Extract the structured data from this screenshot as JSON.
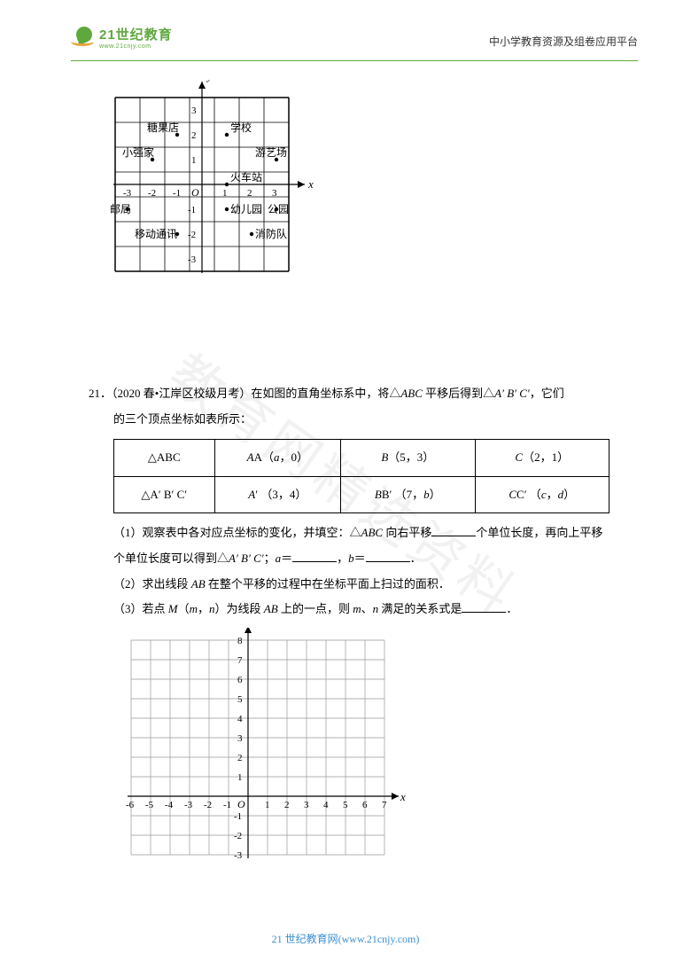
{
  "header": {
    "logo_cn": "21世纪教育",
    "logo_en": "www.21cnjy.com",
    "right_text": "中小学教育资源及组卷应用平台"
  },
  "watermark": "教育网精选资料",
  "grid1": {
    "axis_y": "y",
    "axis_x": "x",
    "origin": "O",
    "xticks": [
      "-3",
      "-2",
      "-1",
      "1",
      "2",
      "3"
    ],
    "yticks_pos": [
      "1",
      "2",
      "3"
    ],
    "yticks_neg": [
      "-1",
      "-2",
      "-3"
    ],
    "labels": {
      "candy": "糖果店",
      "school": "学校",
      "xiaoqiang": "小强家",
      "youyi": "游艺场",
      "train": "火车站",
      "post": "邮局",
      "kinder": "幼儿园",
      "park": "公园",
      "mobile": "移动通讯",
      "fire": "消防队"
    },
    "cell": 28,
    "grid_color": "#000000",
    "line_width": 1
  },
  "q21": {
    "number": "21．",
    "source": "（2020 春•江岸区校级月考）",
    "stem": "在如图的直角坐标系中，将△",
    "abc": "ABC",
    "stem2": " 平移后得到△",
    "aprime": "A′ B′ C′",
    "stem3": "，它们",
    "stem4": "的三个顶点坐标如表所示：",
    "table": {
      "r1c1": "△ABC",
      "r1c2_pre": "A（",
      "r1c2_var": "a",
      "r1c2_post": "，0）",
      "r1c3": "B（5，3）",
      "r1c4": "C（2，1）",
      "r2c1": "△A′ B′ C′",
      "r2c2": "A′ （3，4）",
      "r2c3_pre": "B′ （7，",
      "r2c3_var": "b",
      "r2c3_post": "）",
      "r2c4_pre": "C′ （",
      "r2c4_var1": "c",
      "r2c4_mid": "，",
      "r2c4_var2": "d",
      "r2c4_post": "）"
    },
    "part1_a": "（1）观察表中各对应点坐标的变化，并填空：△",
    "part1_b": " 向右平移",
    "part1_c": "个单位长度，再向上平移",
    "part1_d": "个单位长度可以得到△",
    "part1_e": "；",
    "part1_var_a": "a",
    "eq1": "＝",
    "comma": "，",
    "part1_var_b": "b",
    "period": "．",
    "part2": "（2）求出线段 ",
    "part2_ab": "AB",
    "part2_b": " 在整个平移的过程中在坐标平面上扫过的面积．",
    "part3_a": "（3）若点 ",
    "part3_m": "M",
    "part3_b": "（",
    "part3_var_m": "m",
    "part3_c": "，",
    "part3_var_n": "n",
    "part3_d": "）为线段 ",
    "part3_e": " 上的一点，则 ",
    "part3_f": "、",
    "part3_g": " 满足的关系式是"
  },
  "grid2": {
    "axis_y": "y",
    "axis_x": "x",
    "origin": "O",
    "xticks_neg": [
      "-6",
      "-5",
      "-4",
      "-3",
      "-2",
      "-1"
    ],
    "xticks_pos": [
      "1",
      "2",
      "3",
      "4",
      "5",
      "6",
      "7"
    ],
    "yticks_pos": [
      "1",
      "2",
      "3",
      "4",
      "5",
      "6",
      "7",
      "8"
    ],
    "yticks_neg": [
      "-1",
      "-2",
      "-3"
    ],
    "cell": 22,
    "grid_color": "#888888",
    "line_width": 0.7
  },
  "footer": {
    "text_cn": "21 世纪教育网",
    "text_en": "(www.21cnjy.com)"
  }
}
